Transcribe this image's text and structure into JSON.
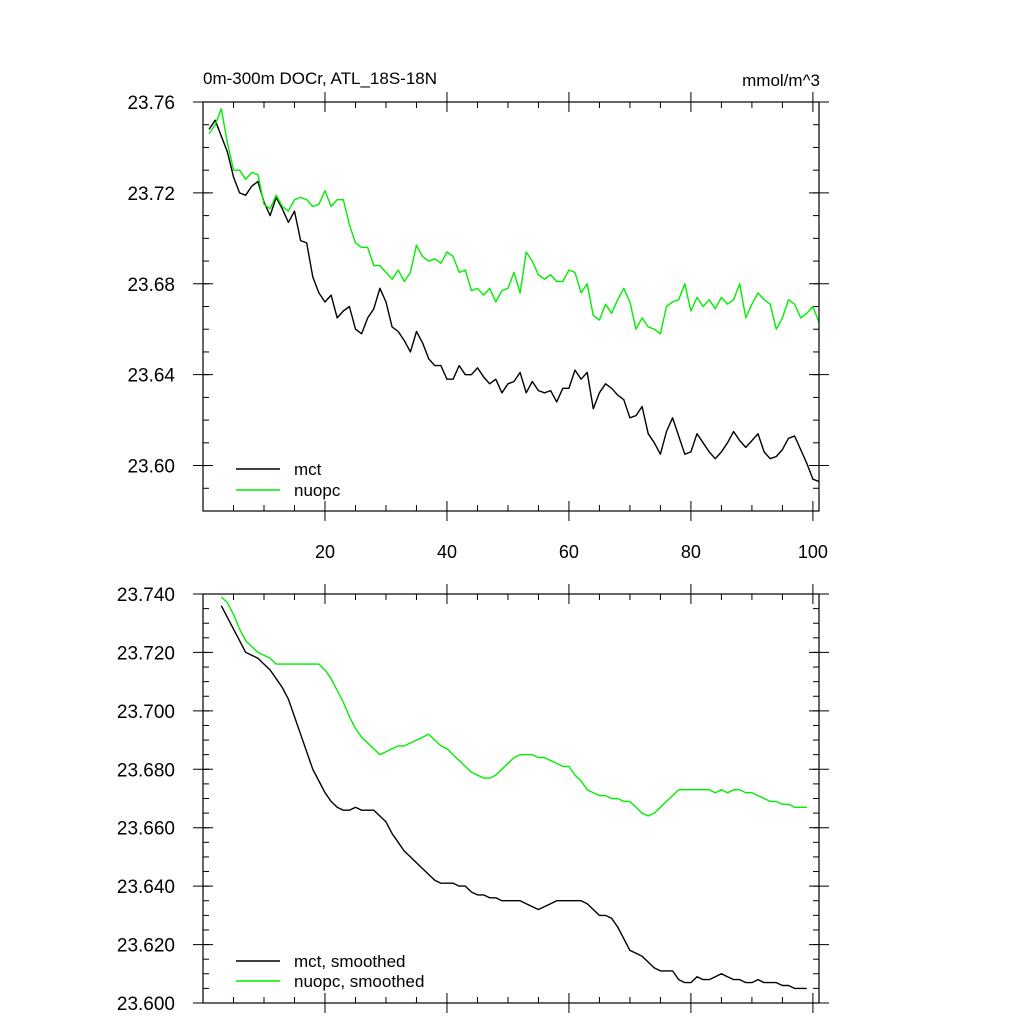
{
  "colors": {
    "mct": "#000000",
    "nuopc": "#00ee00"
  },
  "chart_data": [
    {
      "type": "line",
      "title": "0m-300m DOCr, ATL_18S-18N",
      "units": "mmol/m^3",
      "xlabel": "",
      "ylabel": "",
      "xlim": [
        0,
        101
      ],
      "ylim": [
        23.58,
        23.76
      ],
      "xticks": [
        20,
        40,
        60,
        80,
        100
      ],
      "xtick_labels": [
        "20",
        "40",
        "60",
        "80",
        "100"
      ],
      "yticks": [
        23.6,
        23.64,
        23.68,
        23.72,
        23.76
      ],
      "ytick_labels": [
        "23.60",
        "23.64",
        "23.68",
        "23.72",
        "23.76"
      ],
      "legend_position": "bottom-left",
      "x": [
        1,
        2,
        3,
        4,
        5,
        6,
        7,
        8,
        9,
        10,
        11,
        12,
        13,
        14,
        15,
        16,
        17,
        18,
        19,
        20,
        21,
        22,
        23,
        24,
        25,
        26,
        27,
        28,
        29,
        30,
        31,
        32,
        33,
        34,
        35,
        36,
        37,
        38,
        39,
        40,
        41,
        42,
        43,
        44,
        45,
        46,
        47,
        48,
        49,
        50,
        51,
        52,
        53,
        54,
        55,
        56,
        57,
        58,
        59,
        60,
        61,
        62,
        63,
        64,
        65,
        66,
        67,
        68,
        69,
        70,
        71,
        72,
        73,
        74,
        75,
        76,
        77,
        78,
        79,
        80,
        81,
        82,
        83,
        84,
        85,
        86,
        87,
        88,
        89,
        90,
        91,
        92,
        93,
        94,
        95,
        96,
        97,
        98,
        99,
        100,
        101
      ],
      "series": [
        {
          "name": "mct",
          "values": [
            23.748,
            23.752,
            23.745,
            23.738,
            23.727,
            23.72,
            23.719,
            23.723,
            23.725,
            23.716,
            23.71,
            23.718,
            23.713,
            23.707,
            23.712,
            23.699,
            23.698,
            23.683,
            23.676,
            23.672,
            23.675,
            23.665,
            23.668,
            23.67,
            23.66,
            23.658,
            23.665,
            23.669,
            23.678,
            23.672,
            23.661,
            23.659,
            23.655,
            23.65,
            23.659,
            23.654,
            23.647,
            23.644,
            23.644,
            23.638,
            23.638,
            23.644,
            23.64,
            23.64,
            23.643,
            23.639,
            23.636,
            23.638,
            23.632,
            23.636,
            23.637,
            23.641,
            23.632,
            23.637,
            23.633,
            23.632,
            23.633,
            23.628,
            23.634,
            23.634,
            23.642,
            23.638,
            23.641,
            23.625,
            23.632,
            23.636,
            23.634,
            23.631,
            23.629,
            23.621,
            23.622,
            23.626,
            23.614,
            23.61,
            23.605,
            23.615,
            23.621,
            23.613,
            23.605,
            23.606,
            23.614,
            23.61,
            23.606,
            23.603,
            23.606,
            23.61,
            23.615,
            23.611,
            23.608,
            23.611,
            23.614,
            23.606,
            23.603,
            23.604,
            23.607,
            23.612,
            23.613,
            23.607,
            23.601,
            23.594,
            23.593
          ]
        },
        {
          "name": "nuopc",
          "values": [
            23.746,
            23.75,
            23.757,
            23.742,
            23.73,
            23.73,
            23.726,
            23.729,
            23.728,
            23.715,
            23.713,
            23.719,
            23.714,
            23.712,
            23.717,
            23.718,
            23.717,
            23.714,
            23.715,
            23.721,
            23.714,
            23.717,
            23.717,
            23.706,
            23.698,
            23.696,
            23.696,
            23.688,
            23.688,
            23.685,
            23.682,
            23.686,
            23.681,
            23.685,
            23.697,
            23.692,
            23.69,
            23.691,
            23.689,
            23.694,
            23.692,
            23.685,
            23.686,
            23.677,
            23.678,
            23.675,
            23.678,
            23.672,
            23.677,
            23.678,
            23.685,
            23.676,
            23.694,
            23.69,
            23.684,
            23.682,
            23.684,
            23.681,
            23.681,
            23.686,
            23.685,
            23.676,
            23.68,
            23.666,
            23.664,
            23.671,
            23.667,
            23.673,
            23.678,
            23.672,
            23.66,
            23.665,
            23.661,
            23.66,
            23.658,
            23.67,
            23.672,
            23.673,
            23.68,
            23.668,
            23.674,
            23.67,
            23.673,
            23.669,
            23.674,
            23.671,
            23.673,
            23.68,
            23.665,
            23.671,
            23.676,
            23.673,
            23.671,
            23.66,
            23.665,
            23.673,
            23.671,
            23.665,
            23.667,
            23.67,
            23.663
          ]
        }
      ],
      "legend": [
        "mct",
        "nuopc"
      ]
    },
    {
      "type": "line",
      "title": "",
      "xlabel": "",
      "ylabel": "",
      "xlim": [
        0,
        101
      ],
      "ylim": [
        23.6,
        23.74
      ],
      "xticks": [
        20,
        40,
        60,
        80,
        100
      ],
      "yticks": [
        23.6,
        23.62,
        23.64,
        23.66,
        23.68,
        23.7,
        23.72,
        23.74
      ],
      "ytick_labels": [
        "23.600",
        "23.620",
        "23.640",
        "23.660",
        "23.680",
        "23.700",
        "23.720",
        "23.740"
      ],
      "legend_position": "bottom-left",
      "x": [
        3,
        4,
        5,
        6,
        7,
        8,
        9,
        10,
        11,
        12,
        13,
        14,
        15,
        16,
        17,
        18,
        19,
        20,
        21,
        22,
        23,
        24,
        25,
        26,
        27,
        28,
        29,
        30,
        31,
        32,
        33,
        34,
        35,
        36,
        37,
        38,
        39,
        40,
        41,
        42,
        43,
        44,
        45,
        46,
        47,
        48,
        49,
        50,
        51,
        52,
        53,
        54,
        55,
        56,
        57,
        58,
        59,
        60,
        61,
        62,
        63,
        64,
        65,
        66,
        67,
        68,
        69,
        70,
        71,
        72,
        73,
        74,
        75,
        76,
        77,
        78,
        79,
        80,
        81,
        82,
        83,
        84,
        85,
        86,
        87,
        88,
        89,
        90,
        91,
        92,
        93,
        94,
        95,
        96,
        97,
        98,
        99
      ],
      "series": [
        {
          "name": "mct, smoothed",
          "values": [
            23.736,
            23.732,
            23.728,
            23.724,
            23.72,
            23.719,
            23.718,
            23.716,
            23.714,
            23.711,
            23.708,
            23.704,
            23.698,
            23.692,
            23.686,
            23.68,
            23.676,
            23.672,
            23.669,
            23.667,
            23.666,
            23.666,
            23.667,
            23.666,
            23.666,
            23.666,
            23.664,
            23.662,
            23.658,
            23.655,
            23.652,
            23.65,
            23.648,
            23.646,
            23.644,
            23.642,
            23.641,
            23.641,
            23.641,
            23.64,
            23.64,
            23.638,
            23.637,
            23.637,
            23.636,
            23.636,
            23.635,
            23.635,
            23.635,
            23.635,
            23.634,
            23.633,
            23.632,
            23.633,
            23.634,
            23.635,
            23.635,
            23.635,
            23.635,
            23.635,
            23.634,
            23.632,
            23.63,
            23.63,
            23.629,
            23.626,
            23.622,
            23.618,
            23.617,
            23.616,
            23.614,
            23.612,
            23.611,
            23.611,
            23.611,
            23.608,
            23.607,
            23.607,
            23.609,
            23.608,
            23.608,
            23.609,
            23.61,
            23.609,
            23.608,
            23.608,
            23.607,
            23.607,
            23.608,
            23.607,
            23.607,
            23.607,
            23.606,
            23.606,
            23.605,
            23.605,
            23.605
          ]
        },
        {
          "name": "nuopc, smoothed",
          "values": [
            23.739,
            23.737,
            23.733,
            23.728,
            23.724,
            23.722,
            23.72,
            23.719,
            23.718,
            23.716,
            23.716,
            23.716,
            23.716,
            23.716,
            23.716,
            23.716,
            23.716,
            23.714,
            23.711,
            23.707,
            23.703,
            23.698,
            23.694,
            23.691,
            23.689,
            23.687,
            23.685,
            23.686,
            23.687,
            23.688,
            23.688,
            23.689,
            23.69,
            23.691,
            23.692,
            23.69,
            23.688,
            23.687,
            23.685,
            23.683,
            23.681,
            23.679,
            23.678,
            23.677,
            23.677,
            23.678,
            23.68,
            23.682,
            23.684,
            23.685,
            23.685,
            23.685,
            23.684,
            23.684,
            23.683,
            23.682,
            23.681,
            23.681,
            23.678,
            23.676,
            23.673,
            23.672,
            23.671,
            23.671,
            23.67,
            23.67,
            23.669,
            23.669,
            23.667,
            23.665,
            23.664,
            23.665,
            23.667,
            23.669,
            23.671,
            23.673,
            23.673,
            23.673,
            23.673,
            23.673,
            23.673,
            23.672,
            23.673,
            23.672,
            23.673,
            23.673,
            23.672,
            23.672,
            23.671,
            23.67,
            23.669,
            23.669,
            23.668,
            23.668,
            23.667,
            23.667,
            23.667
          ]
        }
      ],
      "legend": [
        "mct, smoothed",
        "nuopc, smoothed"
      ]
    }
  ]
}
